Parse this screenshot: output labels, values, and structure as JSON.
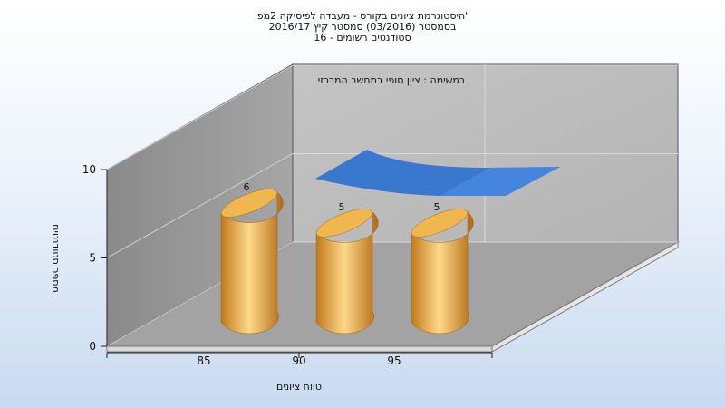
{
  "header": {
    "line1": "היסטוגרמת ציונים בקורס - מעבדה לפיסיקה 2מפ'",
    "line2": "בסמסטר (03/2016) סמסטר קיץ 2016/17",
    "line3": "סטודנטים רשומים - 16"
  },
  "chart_data": {
    "type": "bar",
    "title": "היסטוגרמת ציונים בקורס - מעבדה לפיסיקה 2מפ'",
    "subtitle": "בסמסטר (03/2016) סמסטר קיץ 2016/17 | סטודנטים רשומים - 16",
    "legend_label": "במשימה : ציון סופי במחשב המרכזי",
    "categories": [
      "85",
      "90",
      "95"
    ],
    "values": [
      6,
      5,
      5
    ],
    "xlabel": "טווח ציונים",
    "ylabel": "מספר סטודנטים",
    "ylim": [
      0,
      10
    ],
    "yticks": [
      "0",
      "5",
      "10"
    ],
    "colors": {
      "bar": "#e8a63a",
      "wall": "#9a9a9a",
      "ribbon": "#3a78d0"
    }
  }
}
